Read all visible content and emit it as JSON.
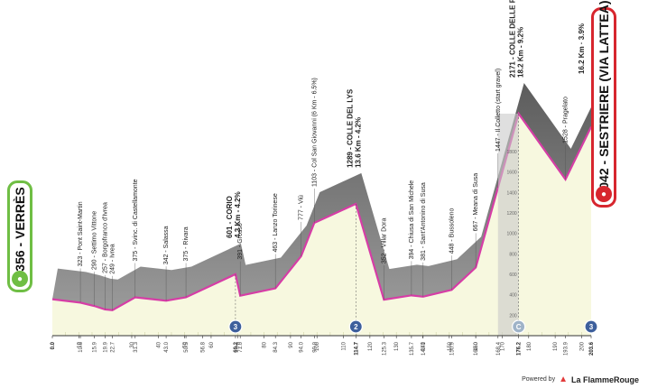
{
  "start": {
    "altitude": "356",
    "name": "VERRÈS"
  },
  "finish": {
    "altitude": "2042",
    "name": "SESTRIERE (VIA LATTEA)",
    "climb": "16.2 Km · 3.9%"
  },
  "waypoints": [
    {
      "label": "323 - Pont Saint-Martin",
      "km": 10.6
    },
    {
      "label": "290 - Settimo Vittone",
      "km": 15.9
    },
    {
      "label": "257 - Borgofranco d'Ivrea",
      "km": 19.9
    },
    {
      "label": "249 - Ivrea",
      "km": 22.7
    },
    {
      "label": "375 - Svinc. di Castellamonte",
      "km": 31.3
    },
    {
      "label": "342 - Salassa",
      "km": 43.0
    },
    {
      "label": "375 - Rivara",
      "km": 50.5
    },
    {
      "label": "391 - Grosso",
      "km": 71.0
    },
    {
      "label": "463 - Lanzo Torinese",
      "km": 84.3
    },
    {
      "label": "777 - Viù",
      "km": 94.0
    },
    {
      "label": "1103 - Col San Giovanni (6 Km - 6.5%)",
      "km": 99.0
    },
    {
      "label": "352 - Villar Dora",
      "km": 125.3
    },
    {
      "label": "394 - Chiusa di San Michele",
      "km": 135.7
    },
    {
      "label": "381 - Sant'Antonino di Susa",
      "km": 140.1
    },
    {
      "label": "448 - Bussoleno",
      "km": 150.9
    },
    {
      "label": "667 - Meana di Susa",
      "km": 160.0
    },
    {
      "label": "1447 - Il Colletto (start gravel)",
      "km": 168.4
    },
    {
      "label": "1528 - Pragelato",
      "km": 193.9
    }
  ],
  "climbs": [
    {
      "name": "601 - CORIO",
      "detail": "4.3 Km - 4.2%",
      "km": 69.2
    },
    {
      "name": "1289 - COLLE DEL LYS",
      "detail": "13.6 Km - 4.2%",
      "km": 114.7
    },
    {
      "name": "2171 - COLLE DELLE FINESTRE",
      "detail": "18.2 Km - 9.2%",
      "km": 176.2
    }
  ],
  "km_axis": [
    "0.0",
    "10",
    "10.6",
    "15.9",
    "19.9",
    "22.7",
    "30",
    "31.3",
    "40",
    "43.0",
    "50",
    "50.5",
    "56.8",
    "60",
    "69.2",
    "70",
    "71.0",
    "80",
    "84.3",
    "90",
    "94.0",
    "99.0",
    "100",
    "110",
    "114.7",
    "120",
    "125.3",
    "130",
    "135.7",
    "140",
    "140.1",
    "150",
    "150.9",
    "160",
    "160.0",
    "168.4",
    "170",
    "176.2",
    "180",
    "190",
    "193.9",
    "200",
    "203.6"
  ],
  "altitude_ticks": [
    "1800",
    "1600",
    "1400",
    "1200",
    "1000",
    "800",
    "600",
    "400",
    "200"
  ],
  "markers": [
    {
      "km": 69.2,
      "type": "gpm-3",
      "label": "3"
    },
    {
      "km": 114.7,
      "type": "gpm-2",
      "label": "2"
    },
    {
      "km": 176.2,
      "type": "cima-coppi",
      "label": "C"
    },
    {
      "km": 203.6,
      "type": "gpm-3",
      "label": "3"
    }
  ],
  "footer": {
    "powered": "Powered by",
    "brand": "La FlammeRouge"
  },
  "colors": {
    "profile_top": "#d63da6",
    "profile_fill": "#f7f8df",
    "side": "#7f7f7f",
    "start": "#6fbe44",
    "finish": "#d7262e",
    "marker": "#3d5f9c"
  }
}
